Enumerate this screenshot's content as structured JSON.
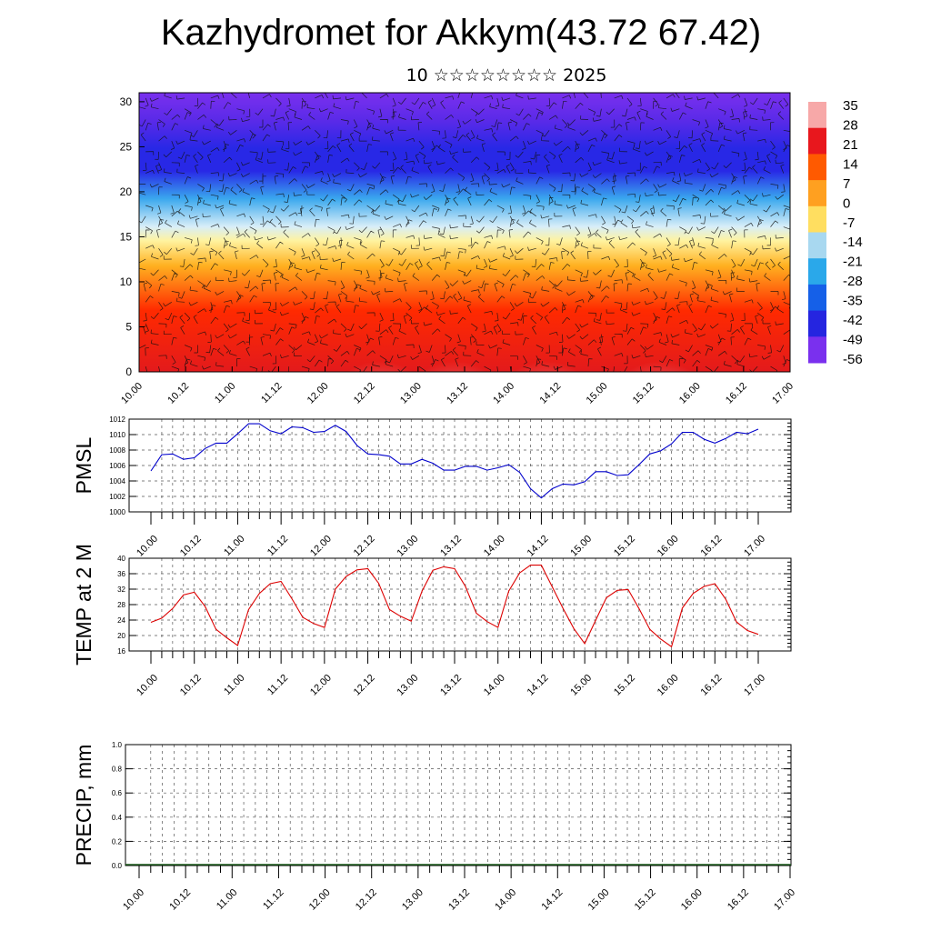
{
  "header": {
    "title": "Kazhydromet for Akkym(43.72 67.42)",
    "subtitle": "10 ☆☆☆☆☆☆☆☆ 2025"
  },
  "chart_data": [
    {
      "type": "heatmap",
      "name": "vertical-cross-section",
      "y_ticks": [
        "0",
        "5",
        "10",
        "15",
        "20",
        "25",
        "30"
      ],
      "ylim": [
        0,
        31
      ],
      "x_ticks": [
        "10.00",
        "10.12",
        "11.00",
        "11.12",
        "12.00",
        "12.12",
        "13.00",
        "13.12",
        "14.00",
        "14.12",
        "15.00",
        "15.12",
        "16.00",
        "16.12",
        "17.00"
      ],
      "overlay": "wind barbs",
      "colorbar": {
        "labels": [
          "35",
          "28",
          "21",
          "14",
          "7",
          "0",
          "-7",
          "-14",
          "-21",
          "-28",
          "-35",
          "-42",
          "-49",
          "-56"
        ],
        "colors": [
          "#f7a8a8",
          "#e8171d",
          "#ff5a00",
          "#ffa020",
          "#ffde60",
          "#a8d8f0",
          "#2aa8ea",
          "#1560e8",
          "#2525e0",
          "#7a30ee"
        ]
      },
      "colors": {
        "top": "#7a30ee",
        "upper": "#2828e6",
        "mid": "#3aa8ee",
        "transition": "#fff3a0",
        "warm": "#ffb020",
        "hot": "#ff2a00",
        "surface": "#e31a1c",
        "surface_max": "#f7a5a5"
      }
    },
    {
      "type": "line",
      "name": "pmsl",
      "ylabel": "PMSL",
      "ylim": [
        1000,
        1012
      ],
      "y_ticks": [
        "1000",
        "1002",
        "1004",
        "1006",
        "1008",
        "1010",
        "1012"
      ],
      "x_ticks": [
        "10.00",
        "10.12",
        "11.00",
        "11.12",
        "12.00",
        "12.12",
        "13.00",
        "13.12",
        "14.00",
        "14.12",
        "15.00",
        "15.12",
        "16.00",
        "16.12",
        "17.00"
      ],
      "color": "#0000cc",
      "values": [
        1005.3,
        1007.4,
        1007.5,
        1006.8,
        1007.0,
        1008.2,
        1008.9,
        1008.9,
        1010.1,
        1011.4,
        1011.4,
        1010.5,
        1010.1,
        1011.0,
        1010.9,
        1010.3,
        1010.4,
        1011.2,
        1010.4,
        1008.6,
        1007.5,
        1007.4,
        1007.2,
        1006.2,
        1006.2,
        1006.8,
        1006.3,
        1005.4,
        1005.4,
        1005.9,
        1005.9,
        1005.4,
        1005.7,
        1006.1,
        1005.1,
        1003.0,
        1001.8,
        1003.0,
        1003.6,
        1003.5,
        1003.9,
        1005.2,
        1005.2,
        1004.7,
        1004.8,
        1006.1,
        1007.5,
        1007.9,
        1008.8,
        1010.3,
        1010.3,
        1009.4,
        1008.9,
        1009.5,
        1010.3,
        1010.1,
        1010.7
      ]
    },
    {
      "type": "line",
      "name": "temp-2m",
      "ylabel": "TEMP at 2 M",
      "ylim": [
        16,
        40
      ],
      "y_ticks": [
        "16",
        "20",
        "24",
        "28",
        "32",
        "36",
        "40"
      ],
      "x_ticks": [
        "10.00",
        "10.12",
        "11.00",
        "11.12",
        "12.00",
        "12.12",
        "13.00",
        "13.12",
        "14.00",
        "14.12",
        "15.00",
        "15.12",
        "16.00",
        "16.12",
        "17.00"
      ],
      "color": "#dd0000",
      "values": [
        23.4,
        24.5,
        27.0,
        30.5,
        31.2,
        27.5,
        21.6,
        19.4,
        17.4,
        26.7,
        30.9,
        33.4,
        34.0,
        29.5,
        24.7,
        23.1,
        22.1,
        32.0,
        35.3,
        37.0,
        37.3,
        33.5,
        26.7,
        25.0,
        23.7,
        31.5,
        36.9,
        37.8,
        37.3,
        32.7,
        25.8,
        23.6,
        22.1,
        31.5,
        36.2,
        38.2,
        38.2,
        32.6,
        27.0,
        21.8,
        17.9,
        23.9,
        29.8,
        31.7,
        31.9,
        27.0,
        21.6,
        19.1,
        17.1,
        27.1,
        30.9,
        32.7,
        33.4,
        29.4,
        23.5,
        21.3,
        20.3
      ]
    },
    {
      "type": "bar",
      "name": "precip",
      "ylabel": "PRECIP, mm",
      "ylim": [
        0,
        1
      ],
      "y_ticks": [
        "0.0",
        "0.2",
        "0.4",
        "0.6",
        "0.8",
        "1.0"
      ],
      "x_ticks": [
        "10.00",
        "10.12",
        "11.00",
        "11.12",
        "12.00",
        "12.12",
        "13.00",
        "13.12",
        "14.00",
        "14.12",
        "15.00",
        "15.12",
        "16.00",
        "16.12",
        "17.00"
      ],
      "values": [
        0,
        0,
        0,
        0,
        0,
        0,
        0,
        0,
        0,
        0,
        0,
        0,
        0,
        0,
        0,
        0,
        0,
        0,
        0,
        0,
        0,
        0,
        0,
        0,
        0,
        0,
        0,
        0,
        0,
        0,
        0,
        0,
        0,
        0,
        0,
        0,
        0,
        0,
        0,
        0,
        0,
        0,
        0,
        0,
        0,
        0,
        0,
        0,
        0,
        0,
        0,
        0,
        0,
        0,
        0,
        0,
        0
      ]
    }
  ]
}
